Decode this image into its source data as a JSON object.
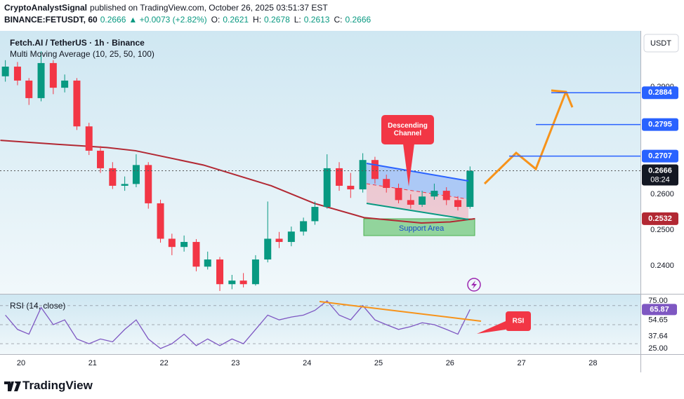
{
  "header": {
    "author": "CryptoAnalystSignal",
    "published": "published on TradingView.com, October 26, 2025 03:51:37 EST",
    "symbol": "BINANCE:FETUSDT, 60",
    "last": "0.2666",
    "change": "▲ +0.0073 (+2.82%)",
    "ohlc": [
      {
        "key": "O:",
        "value": "0.2621"
      },
      {
        "key": "H:",
        "value": "0.2678"
      },
      {
        "key": "L:",
        "value": "0.2613"
      },
      {
        "key": "C:",
        "value": "0.2666"
      }
    ]
  },
  "footer": {
    "brand": "TradingView"
  },
  "chart_data": [
    {
      "type": "candlestick",
      "title": "Fetch.AI / TetherUS · 1h · Binance",
      "indicator": "Multi Moving Average (10, 25, 50, 100)",
      "currency": "USDT",
      "x": [
        19.78,
        19.95,
        20.11,
        20.28,
        20.45,
        20.61,
        20.78,
        20.95,
        21.11,
        21.28,
        21.45,
        21.61,
        21.78,
        21.95,
        22.11,
        22.28,
        22.45,
        22.61,
        22.78,
        22.95,
        23.11,
        23.28,
        23.45,
        23.61,
        23.78,
        23.95,
        24.11,
        24.28,
        24.45,
        24.61,
        24.78,
        24.95,
        25.11,
        25.28,
        25.45,
        25.61,
        25.78,
        25.95,
        26.11,
        26.28
      ],
      "open": [
        0.293,
        0.2957,
        0.2918,
        0.2869,
        0.2967,
        0.2898,
        0.2918,
        0.279,
        0.2722,
        0.2673,
        0.2624,
        0.2629,
        0.2682,
        0.2575,
        0.2476,
        0.2453,
        0.2467,
        0.2398,
        0.2418,
        0.2349,
        0.2359,
        0.2349,
        0.2418,
        0.2476,
        0.2467,
        0.2496,
        0.2525,
        0.2565,
        0.2673,
        0.2624,
        0.2614,
        0.2696,
        0.2643,
        0.2618,
        0.2584,
        0.2571,
        0.2594,
        0.261,
        0.2584,
        0.2565
      ],
      "high": [
        0.2975,
        0.297,
        0.2925,
        0.3,
        0.2975,
        0.2935,
        0.2925,
        0.28,
        0.2735,
        0.269,
        0.265,
        0.2712,
        0.269,
        0.2585,
        0.249,
        0.2485,
        0.2475,
        0.244,
        0.2425,
        0.2375,
        0.238,
        0.243,
        0.258,
        0.2495,
        0.251,
        0.2535,
        0.258,
        0.2712,
        0.269,
        0.266,
        0.2715,
        0.2705,
        0.2655,
        0.263,
        0.26,
        0.261,
        0.263,
        0.262,
        0.2595,
        0.2678
      ],
      "low": [
        0.2915,
        0.2905,
        0.285,
        0.286,
        0.288,
        0.2885,
        0.278,
        0.271,
        0.266,
        0.2615,
        0.261,
        0.262,
        0.256,
        0.2465,
        0.243,
        0.244,
        0.2385,
        0.239,
        0.233,
        0.2335,
        0.234,
        0.2345,
        0.241,
        0.245,
        0.2455,
        0.2485,
        0.2515,
        0.256,
        0.261,
        0.259,
        0.2605,
        0.263,
        0.2605,
        0.2575,
        0.256,
        0.2565,
        0.2585,
        0.257,
        0.2555,
        0.256
      ],
      "close": [
        0.2957,
        0.2918,
        0.2869,
        0.2967,
        0.2898,
        0.2918,
        0.279,
        0.2722,
        0.2673,
        0.2624,
        0.2629,
        0.2682,
        0.2575,
        0.2476,
        0.2453,
        0.2467,
        0.2398,
        0.2418,
        0.2349,
        0.2359,
        0.2349,
        0.2418,
        0.2476,
        0.2467,
        0.2496,
        0.2525,
        0.2565,
        0.2673,
        0.2624,
        0.2614,
        0.2696,
        0.2643,
        0.2618,
        0.2584,
        0.2571,
        0.2594,
        0.261,
        0.2584,
        0.2565,
        0.2666
      ],
      "up_color": "#089981",
      "down_color": "#f23645",
      "xlim": [
        19.705,
        28.664
      ],
      "xticks": [
        20,
        21,
        22,
        23,
        24,
        25,
        26,
        27,
        28
      ],
      "ylim": [
        0.2324,
        0.3057
      ],
      "yticks": [
        {
          "value": 0.24,
          "label": "0.2400"
        },
        {
          "value": 0.25,
          "label": "0.2500"
        },
        {
          "value": 0.26,
          "label": "0.2600"
        },
        {
          "value": 0.29,
          "label": "0.2900"
        }
      ],
      "moving_average": {
        "color": "#b22833",
        "x": [
          19.71,
          20.5,
          21.2,
          21.6,
          22.55,
          23.5,
          24.1,
          24.8,
          25.6,
          26.0,
          26.35
        ],
        "values": [
          0.2751,
          0.274,
          0.2731,
          0.2722,
          0.2682,
          0.2624,
          0.2575,
          0.2535,
          0.252,
          0.2523,
          0.2532
        ]
      },
      "levels": [
        {
          "value": 0.2884,
          "color": "#2962ff",
          "line": true
        },
        {
          "value": 0.2795,
          "color": "#2962ff",
          "line": true
        },
        {
          "value": 0.2707,
          "color": "#2962ff",
          "line": true
        },
        {
          "value": 0.2532,
          "color": "#b22833",
          "line": false
        }
      ],
      "last_price": {
        "value": 0.2666,
        "countdown": "08:24",
        "color": "#131722"
      },
      "annotations": {
        "channel": "Descending Channel",
        "support": "Support Area"
      }
    },
    {
      "type": "line",
      "title": "RSI (14, close)",
      "color": "#7e57c2",
      "x": [
        19.78,
        19.95,
        20.11,
        20.28,
        20.45,
        20.61,
        20.78,
        20.95,
        21.11,
        21.28,
        21.45,
        21.61,
        21.78,
        21.95,
        22.11,
        22.28,
        22.45,
        22.61,
        22.78,
        22.95,
        23.11,
        23.28,
        23.45,
        23.61,
        23.78,
        23.95,
        24.11,
        24.28,
        24.45,
        24.61,
        24.78,
        24.95,
        25.11,
        25.28,
        25.45,
        25.61,
        25.78,
        25.95,
        26.11,
        26.28
      ],
      "values": [
        60,
        45,
        40,
        68,
        50,
        55,
        35,
        30,
        35,
        32,
        45,
        55,
        35,
        25,
        30,
        40,
        28,
        35,
        28,
        35,
        30,
        45,
        60,
        55,
        58,
        60,
        65,
        75,
        60,
        55,
        70,
        55,
        50,
        45,
        48,
        52,
        50,
        45,
        40,
        65.87
      ],
      "ylim": [
        19.1,
        81.6
      ],
      "yticks": [
        {
          "value": 25,
          "label": "25.00"
        },
        {
          "value": 37.64,
          "label": "37.64"
        },
        {
          "value": 54.65,
          "label": "54.65"
        },
        {
          "value": 75,
          "label": "75.00"
        }
      ],
      "bands": [
        70,
        50,
        30
      ],
      "last": {
        "value": 65.87,
        "color": "#7e57c2"
      },
      "annotation": "RSI"
    }
  ]
}
